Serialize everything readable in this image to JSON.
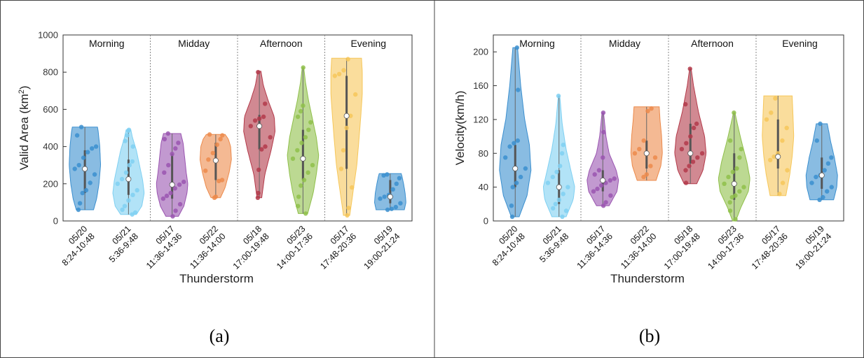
{
  "figure": {
    "captions": [
      "(a)",
      "(b)"
    ]
  },
  "colors": {
    "blue": "#3b8fcf",
    "light_blue": "#7fd0f2",
    "purple": "#9a55b0",
    "orange": "#ec8a4b",
    "red": "#b33a4a",
    "green": "#8fbf4a",
    "yellow": "#f6c75a",
    "axis": "#333333",
    "divider": "#888888"
  },
  "chart_data": [
    {
      "type": "violin",
      "panel": "(a)",
      "title": "",
      "xlabel": "Thunderstorm",
      "ylabel": "Valid Area (km",
      "ylabel_sup": "2",
      "ylabel_close": ")",
      "ylim": [
        0,
        1000
      ],
      "yticks": [
        0,
        200,
        400,
        600,
        800,
        1000
      ],
      "grid": false,
      "periods": [
        "Morning",
        "Midday",
        "Afternoon",
        "Evening"
      ],
      "categories": [
        [
          "05/20",
          "8:24-10:48"
        ],
        [
          "05/21",
          "5:36-9:48"
        ],
        [
          "05/17",
          "11:36-14:36"
        ],
        [
          "05/22",
          "11:36-14:00"
        ],
        [
          "05/18",
          "17:00-19:48"
        ],
        [
          "05/23",
          "14:00-17:36"
        ],
        [
          "05/17",
          "17:48-20:36"
        ],
        [
          "05/19",
          "19:00-21:24"
        ]
      ],
      "series": [
        {
          "color": "blue",
          "min": 60,
          "max": 505,
          "median": 280,
          "q1": 150,
          "q3": 380,
          "profile": [
            [
              60,
              0.55
            ],
            [
              120,
              0.75
            ],
            [
              200,
              0.9
            ],
            [
              300,
              1.0
            ],
            [
              400,
              0.95
            ],
            [
              480,
              0.85
            ],
            [
              505,
              0.8
            ]
          ],
          "points": [
            60,
            95,
            150,
            165,
            205,
            250,
            280,
            300,
            340,
            370,
            390,
            400,
            460,
            505
          ]
        },
        {
          "color": "light_blue",
          "min": 35,
          "max": 490,
          "median": 225,
          "q1": 140,
          "q3": 330,
          "profile": [
            [
              35,
              0.5
            ],
            [
              80,
              0.85
            ],
            [
              150,
              1.0
            ],
            [
              220,
              0.9
            ],
            [
              300,
              0.7
            ],
            [
              380,
              0.5
            ],
            [
              450,
              0.25
            ],
            [
              490,
              0.15
            ]
          ],
          "points": [
            35,
            45,
            60,
            80,
            110,
            140,
            165,
            200,
            225,
            260,
            300,
            320,
            400,
            430,
            460,
            485,
            490
          ]
        },
        {
          "color": "purple",
          "min": 25,
          "max": 470,
          "median": 195,
          "q1": 120,
          "q3": 360,
          "profile": [
            [
              25,
              0.4
            ],
            [
              80,
              0.75
            ],
            [
              150,
              0.95
            ],
            [
              200,
              1.0
            ],
            [
              260,
              0.9
            ],
            [
              340,
              0.8
            ],
            [
              420,
              0.7
            ],
            [
              470,
              0.55
            ]
          ],
          "points": [
            25,
            55,
            90,
            120,
            135,
            150,
            175,
            195,
            210,
            260,
            300,
            360,
            390,
            420,
            440,
            470
          ]
        },
        {
          "color": "orange",
          "min": 125,
          "max": 465,
          "median": 325,
          "q1": 220,
          "q3": 420,
          "profile": [
            [
              125,
              0.3
            ],
            [
              180,
              0.6
            ],
            [
              260,
              0.85
            ],
            [
              330,
              1.0
            ],
            [
              400,
              0.95
            ],
            [
              440,
              0.8
            ],
            [
              465,
              0.6
            ]
          ],
          "points": [
            125,
            130,
            215,
            220,
            270,
            330,
            365,
            410,
            440,
            460,
            465
          ]
        },
        {
          "color": "red",
          "min": 125,
          "max": 805,
          "median": 510,
          "q1": 385,
          "q3": 570,
          "profile": [
            [
              125,
              0.15
            ],
            [
              250,
              0.35
            ],
            [
              380,
              0.75
            ],
            [
              480,
              1.0
            ],
            [
              560,
              0.95
            ],
            [
              650,
              0.55
            ],
            [
              730,
              0.25
            ],
            [
              805,
              0.1
            ]
          ],
          "points": [
            125,
            150,
            275,
            385,
            400,
            450,
            510,
            540,
            550,
            560,
            630,
            800
          ]
        },
        {
          "color": "green",
          "min": 40,
          "max": 825,
          "median": 335,
          "q1": 220,
          "q3": 490,
          "profile": [
            [
              40,
              0.3
            ],
            [
              150,
              0.65
            ],
            [
              250,
              0.85
            ],
            [
              350,
              1.0
            ],
            [
              450,
              0.85
            ],
            [
              550,
              0.6
            ],
            [
              650,
              0.35
            ],
            [
              750,
              0.15
            ],
            [
              825,
              0.05
            ]
          ],
          "points": [
            40,
            80,
            130,
            190,
            220,
            260,
            300,
            335,
            380,
            420,
            450,
            490,
            530,
            560,
            590,
            620,
            825
          ]
        },
        {
          "color": "yellow",
          "min": 30,
          "max": 875,
          "median": 565,
          "q1": 280,
          "q3": 780,
          "profile": [
            [
              30,
              0.2
            ],
            [
              150,
              0.4
            ],
            [
              300,
              0.65
            ],
            [
              450,
              0.8
            ],
            [
              560,
              0.9
            ],
            [
              680,
              1.0
            ],
            [
              800,
              1.0
            ],
            [
              875,
              0.95
            ]
          ],
          "points": [
            30,
            70,
            180,
            280,
            380,
            500,
            565,
            680,
            780,
            790,
            810,
            870
          ]
        },
        {
          "color": "blue",
          "min": 60,
          "max": 255,
          "median": 130,
          "q1": 95,
          "q3": 220,
          "profile": [
            [
              60,
              0.9
            ],
            [
              100,
              1.0
            ],
            [
              150,
              0.95
            ],
            [
              200,
              0.85
            ],
            [
              240,
              0.75
            ],
            [
              255,
              0.7
            ]
          ],
          "points": [
            60,
            65,
            75,
            95,
            120,
            130,
            140,
            170,
            200,
            230,
            245,
            250
          ]
        }
      ]
    },
    {
      "type": "violin",
      "panel": "(b)",
      "title": "",
      "xlabel": "Thunderstorm",
      "ylabel": "Velocity(km/h)",
      "ylim": [
        0,
        220
      ],
      "yticks": [
        0,
        40,
        80,
        120,
        160,
        200
      ],
      "grid": false,
      "periods": [
        "Morning",
        "Midday",
        "Afternoon",
        "Evening"
      ],
      "categories": [
        [
          "05/20",
          "8:24-10:48"
        ],
        [
          "05/21",
          "5:36-9:48"
        ],
        [
          "05/17",
          "11:36-14:36"
        ],
        [
          "05/22",
          "11:36-14:00"
        ],
        [
          "05/18",
          "17:00-19:48"
        ],
        [
          "05/23",
          "14:00-17:36"
        ],
        [
          "05/17",
          "17:48-20:36"
        ],
        [
          "05/19",
          "19:00-21:24"
        ]
      ],
      "series": [
        {
          "color": "blue",
          "min": 5,
          "max": 205,
          "median": 62,
          "q1": 40,
          "q3": 90,
          "profile": [
            [
              5,
              0.25
            ],
            [
              30,
              0.75
            ],
            [
              60,
              1.0
            ],
            [
              90,
              0.9
            ],
            [
              120,
              0.6
            ],
            [
              160,
              0.35
            ],
            [
              205,
              0.15
            ]
          ],
          "points": [
            5,
            18,
            40,
            45,
            52,
            62,
            75,
            88,
            92,
            95,
            155,
            205
          ]
        },
        {
          "color": "light_blue",
          "min": 5,
          "max": 148,
          "median": 40,
          "q1": 20,
          "q3": 60,
          "profile": [
            [
              5,
              0.45
            ],
            [
              25,
              0.9
            ],
            [
              40,
              1.0
            ],
            [
              60,
              0.75
            ],
            [
              85,
              0.45
            ],
            [
              115,
              0.2
            ],
            [
              148,
              0.05
            ]
          ],
          "points": [
            5,
            12,
            15,
            20,
            25,
            32,
            40,
            45,
            52,
            58,
            65,
            80,
            90,
            148
          ]
        },
        {
          "color": "purple",
          "min": 18,
          "max": 128,
          "median": 48,
          "q1": 35,
          "q3": 60,
          "profile": [
            [
              18,
              0.4
            ],
            [
              35,
              0.9
            ],
            [
              48,
              1.0
            ],
            [
              60,
              0.85
            ],
            [
              80,
              0.4
            ],
            [
              100,
              0.2
            ],
            [
              128,
              0.05
            ]
          ],
          "points": [
            18,
            22,
            30,
            35,
            38,
            42,
            45,
            48,
            50,
            55,
            60,
            75,
            105,
            128
          ]
        },
        {
          "color": "orange",
          "min": 48,
          "max": 135,
          "median": 80,
          "q1": 62,
          "q3": 95,
          "profile": [
            [
              48,
              0.6
            ],
            [
              65,
              0.9
            ],
            [
              80,
              1.0
            ],
            [
              100,
              0.95
            ],
            [
              120,
              0.85
            ],
            [
              135,
              0.8
            ]
          ],
          "points": [
            52,
            55,
            65,
            75,
            80,
            85,
            95,
            130,
            133
          ]
        },
        {
          "color": "red",
          "min": 44,
          "max": 180,
          "median": 80,
          "q1": 68,
          "q3": 115,
          "profile": [
            [
              44,
              0.4
            ],
            [
              60,
              0.8
            ],
            [
              80,
              1.0
            ],
            [
              100,
              0.9
            ],
            [
              130,
              0.5
            ],
            [
              160,
              0.2
            ],
            [
              180,
              0.05
            ]
          ],
          "points": [
            45,
            60,
            65,
            70,
            75,
            80,
            85,
            92,
            100,
            110,
            115,
            138,
            180
          ]
        },
        {
          "color": "green",
          "min": 0,
          "max": 128,
          "median": 44,
          "q1": 25,
          "q3": 80,
          "profile": [
            [
              0,
              0.1
            ],
            [
              15,
              0.4
            ],
            [
              35,
              0.9
            ],
            [
              50,
              1.0
            ],
            [
              70,
              0.8
            ],
            [
              95,
              0.45
            ],
            [
              115,
              0.2
            ],
            [
              128,
              0.05
            ]
          ],
          "points": [
            2,
            12,
            22,
            28,
            30,
            35,
            40,
            44,
            52,
            58,
            62,
            75,
            85,
            95,
            128
          ]
        },
        {
          "color": "yellow",
          "min": 30,
          "max": 148,
          "median": 76,
          "q1": 62,
          "q3": 120,
          "profile": [
            [
              30,
              0.5
            ],
            [
              55,
              0.75
            ],
            [
              76,
              0.9
            ],
            [
              100,
              1.0
            ],
            [
              125,
              0.95
            ],
            [
              148,
              0.9
            ]
          ],
          "points": [
            32,
            45,
            60,
            72,
            76,
            80,
            95,
            110,
            120,
            128,
            145
          ]
        },
        {
          "color": "blue",
          "min": 25,
          "max": 115,
          "median": 54,
          "q1": 38,
          "q3": 75,
          "profile": [
            [
              25,
              0.75
            ],
            [
              40,
              0.95
            ],
            [
              54,
              1.0
            ],
            [
              75,
              0.8
            ],
            [
              95,
              0.55
            ],
            [
              115,
              0.35
            ]
          ],
          "points": [
            25,
            28,
            35,
            40,
            45,
            52,
            54,
            60,
            68,
            75,
            95,
            115
          ]
        }
      ]
    }
  ]
}
